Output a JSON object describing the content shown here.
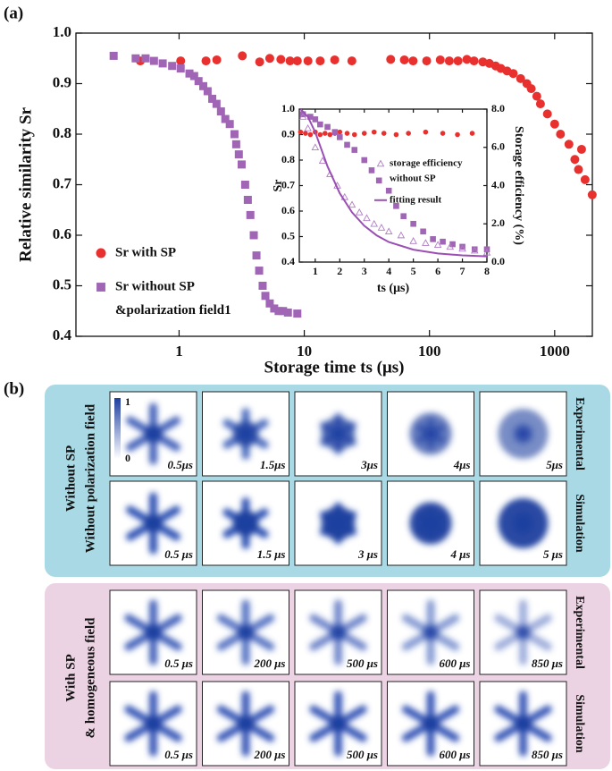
{
  "chart_data": [
    {
      "type": "scatter",
      "panel_label": "(a)",
      "xlabel": "Storage time ts (μs)",
      "ylabel": "Relative similarity Sr",
      "xscale": "log",
      "xlim": [
        0.15,
        2000
      ],
      "xticks": [
        1,
        10,
        100,
        1000
      ],
      "ylim": [
        0.4,
        1.0
      ],
      "yticks": [
        0.4,
        0.5,
        0.6,
        0.7,
        0.8,
        0.9,
        {
          "value": 1.0,
          "label": "1.0"
        }
      ],
      "series": [
        {
          "name": "Sr with SP",
          "color": "#e8312f",
          "marker": "circle",
          "x": [
            0.49,
            1.03,
            1.64,
            2.0,
            3.2,
            4.4,
            5.3,
            6.5,
            7.7,
            8.8,
            10.7,
            13.4,
            17.5,
            24,
            49,
            63,
            74,
            95,
            122,
            144,
            169,
            199,
            227,
            267,
            301,
            338,
            372,
            417,
            467,
            535,
            600,
            650,
            720,
            770,
            875,
            1000,
            1113,
            1300,
            1450,
            1550,
            1640,
            1750,
            1995
          ],
          "values": [
            0.945,
            0.945,
            0.945,
            0.947,
            0.955,
            0.943,
            0.95,
            0.948,
            0.945,
            0.945,
            0.945,
            0.945,
            0.947,
            0.945,
            0.948,
            0.947,
            0.945,
            0.945,
            0.947,
            0.945,
            0.945,
            0.948,
            0.945,
            0.943,
            0.94,
            0.935,
            0.93,
            0.925,
            0.92,
            0.91,
            0.9,
            0.89,
            0.875,
            0.86,
            0.84,
            0.82,
            0.8,
            0.78,
            0.75,
            0.73,
            0.77,
            0.71,
            0.68
          ]
        },
        {
          "name": "Sr without SP",
          "name_line2": "&polarization field1",
          "color": "#a066b5",
          "marker": "square",
          "x": [
            0.3,
            0.45,
            0.54,
            0.63,
            0.74,
            0.88,
            1.03,
            1.21,
            1.32,
            1.43,
            1.56,
            1.69,
            1.84,
            1.99,
            2.16,
            2.34,
            2.54,
            2.77,
            2.86,
            3.0,
            3.16,
            3.37,
            3.54,
            3.71,
            3.95,
            4.15,
            4.36,
            4.65,
            4.89,
            5.3,
            5.75,
            6.24,
            6.77,
            7.4,
            8.8
          ],
          "values": [
            0.955,
            0.95,
            0.95,
            0.945,
            0.94,
            0.935,
            0.93,
            0.92,
            0.915,
            0.905,
            0.895,
            0.885,
            0.87,
            0.86,
            0.845,
            0.83,
            0.82,
            0.8,
            0.78,
            0.76,
            0.74,
            0.7,
            0.67,
            0.64,
            0.6,
            0.56,
            0.53,
            0.5,
            0.48,
            0.465,
            0.455,
            0.45,
            0.45,
            0.447,
            0.445
          ]
        }
      ]
    },
    {
      "type": "scatter",
      "xlabel": "ts (μs)",
      "ylabel": "Sr",
      "y2label": "Storage efficiency (%)",
      "xlim": [
        0.35,
        8
      ],
      "xticks": [
        1,
        2,
        3,
        4,
        5,
        6,
        7,
        8
      ],
      "ylim": [
        0.4,
        1.0
      ],
      "yticks": [
        0.4,
        0.5,
        0.6,
        0.7,
        0.8,
        0.9,
        {
          "value": 1.0,
          "label": "1.0"
        }
      ],
      "y2lim": [
        0,
        8
      ],
      "y2ticks": [
        {
          "value": 0,
          "label": "0.0"
        },
        {
          "value": 2,
          "label": "2.0"
        },
        {
          "value": 4,
          "label": "4.0"
        },
        {
          "value": 6,
          "label": "6.0"
        },
        {
          "value": 8,
          "label": "8.0"
        }
      ],
      "series": [
        {
          "color": "#e8312f",
          "marker": "circle",
          "x": [
            0.4,
            0.6,
            0.8,
            1.0,
            1.2,
            1.4,
            1.6,
            1.8,
            2.0,
            2.3,
            2.6,
            3.0,
            3.4,
            3.8,
            4.3,
            4.8,
            5.5,
            6.2,
            6.8,
            7.4
          ],
          "values": [
            0.91,
            0.905,
            0.9,
            0.91,
            0.9,
            0.905,
            0.9,
            0.905,
            0.91,
            0.905,
            0.9,
            0.905,
            0.91,
            0.905,
            0.9,
            0.905,
            0.91,
            0.905,
            0.9,
            0.905
          ]
        },
        {
          "color": "#a066b5",
          "marker": "square",
          "x": [
            0.5,
            0.8,
            1.0,
            1.2,
            1.5,
            1.8,
            2.0,
            2.3,
            2.6,
            3.0,
            3.3,
            3.6,
            4.0,
            4.3,
            4.6,
            5.0,
            5.4,
            5.8,
            6.2,
            6.6,
            7.0,
            7.5,
            8.0
          ],
          "values": [
            0.98,
            0.97,
            0.96,
            0.94,
            0.93,
            0.91,
            0.89,
            0.86,
            0.84,
            0.8,
            0.76,
            0.72,
            0.68,
            0.62,
            0.58,
            0.55,
            0.52,
            0.49,
            0.48,
            0.47,
            0.46,
            0.45,
            0.45
          ]
        },
        {
          "name": "storage efficiency",
          "name_line2": "without SP",
          "color": "#b07cc6",
          "marker": "triangle",
          "axis": "y2",
          "x": [
            0.5,
            0.7,
            1.0,
            1.3,
            1.6,
            1.9,
            2.2,
            2.5,
            2.8,
            3.1,
            3.4,
            3.7,
            4.0,
            4.5,
            5.0,
            5.5,
            6.0,
            6.5,
            7.0,
            7.5,
            8.0
          ],
          "values": [
            7.6,
            7.0,
            6.0,
            5.3,
            4.6,
            4.0,
            3.4,
            3.0,
            2.6,
            2.3,
            2.0,
            1.8,
            1.6,
            1.4,
            1.1,
            1.0,
            0.9,
            0.8,
            0.7,
            0.6,
            0.5
          ]
        },
        {
          "name": "fitting result",
          "color": "#9b4fb5",
          "marker": "line",
          "axis": "y2",
          "x": [
            0.4,
            0.7,
            1.0,
            1.5,
            2.0,
            2.5,
            3.0,
            3.5,
            4.0,
            5.0,
            6.0,
            7.0,
            8.0
          ],
          "values": [
            8.0,
            7.6,
            6.8,
            5.0,
            3.6,
            2.6,
            1.9,
            1.4,
            1.05,
            0.65,
            0.45,
            0.35,
            0.3
          ]
        }
      ]
    }
  ],
  "panel_b": {
    "label": "(b)",
    "colorbar": {
      "max": 1,
      "min": 0
    },
    "groups": [
      {
        "title_lines": [
          "Without SP",
          "Without polarization field"
        ],
        "rows": [
          {
            "label": "Experimental",
            "times": [
              "0.5μs",
              "1.5μs",
              "3μs",
              "4μs",
              "5μs"
            ]
          },
          {
            "label": "Simulation",
            "times": [
              "0.5 μs",
              "1.5 μs",
              "3 μs",
              "4 μs",
              "5 μs"
            ]
          }
        ]
      },
      {
        "title_lines": [
          "With SP",
          "& homogeneous field"
        ],
        "rows": [
          {
            "label": "Experimental",
            "times": [
              "0.5 μs",
              "200 μs",
              "500 μs",
              "600 μs",
              "850 μs"
            ]
          },
          {
            "label": "Simulation",
            "times": [
              "0.5 μs",
              "200 μs",
              "500 μs",
              "600 μs",
              "850 μs"
            ]
          }
        ]
      }
    ]
  }
}
